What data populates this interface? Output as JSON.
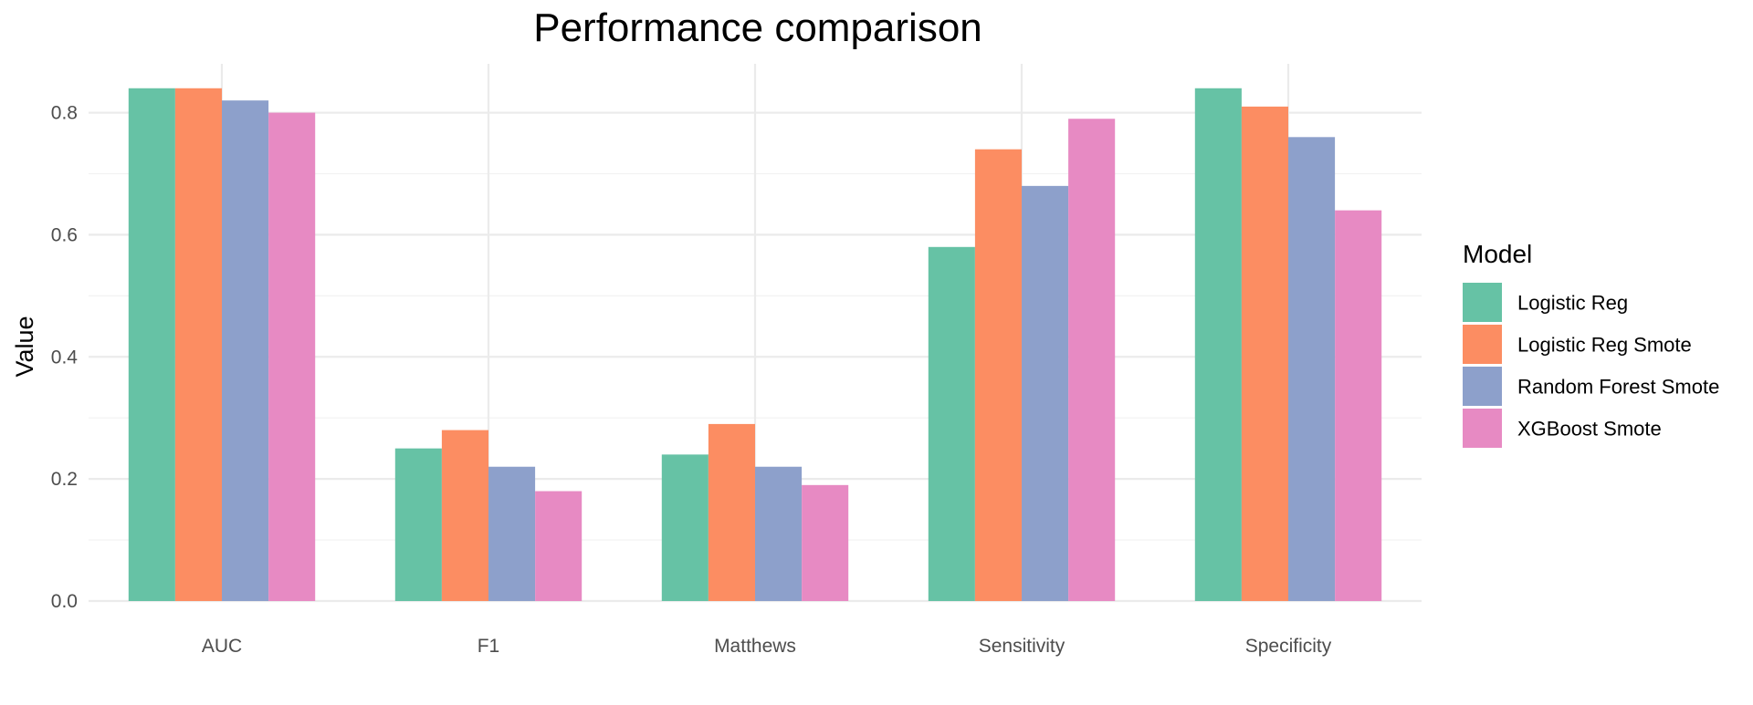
{
  "chart_data": {
    "type": "bar",
    "title": "Performance comparison",
    "xlabel": "",
    "ylabel": "Value",
    "categories": [
      "AUC",
      "F1",
      "Matthews",
      "Sensitivity",
      "Specificity"
    ],
    "series": [
      {
        "name": "Logistic Reg",
        "color": "#66c2a5",
        "values": [
          0.84,
          0.25,
          0.24,
          0.58,
          0.84
        ]
      },
      {
        "name": "Logistic Reg Smote",
        "color": "#fc8d62",
        "values": [
          0.84,
          0.28,
          0.29,
          0.74,
          0.81
        ]
      },
      {
        "name": "Random Forest Smote",
        "color": "#8da0cb",
        "values": [
          0.82,
          0.22,
          0.22,
          0.68,
          0.76
        ]
      },
      {
        "name": "XGBoost Smote",
        "color": "#e78ac3",
        "values": [
          0.8,
          0.18,
          0.19,
          0.79,
          0.64
        ]
      }
    ],
    "ylim": [
      0,
      0.88
    ],
    "yticks": [
      0.0,
      0.2,
      0.4,
      0.6,
      0.8
    ],
    "ytick_labels": [
      "0.0",
      "0.2",
      "0.4",
      "0.6",
      "0.8"
    ],
    "grid": true,
    "legend": {
      "title": "Model",
      "position": "right"
    }
  }
}
